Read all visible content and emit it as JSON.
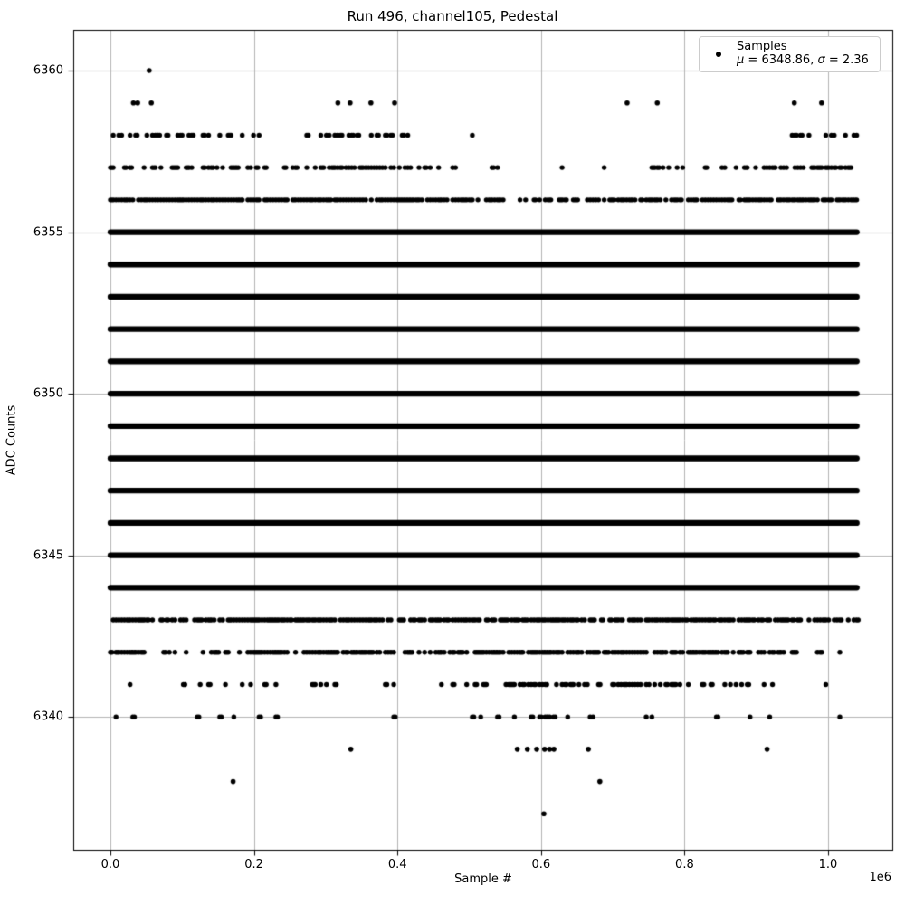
{
  "chart_data": {
    "type": "scatter",
    "title": "Run 496, channel105, Pedestal",
    "xlabel": "Sample #",
    "ylabel": "ADC Counts",
    "x_offset_label": "1e6",
    "marker_color": "#000000",
    "grid": true,
    "grid_color": "#b4b4b4",
    "spine_color": "#000000",
    "xlim": [
      -51700,
      1090800
    ],
    "ylim": [
      6335.86,
      6361.26
    ],
    "x_ticks": [
      0,
      200000,
      400000,
      600000,
      800000,
      1000000
    ],
    "x_tick_labels": [
      "0.0",
      "0.2",
      "0.4",
      "0.6",
      "0.8",
      "1.0"
    ],
    "y_ticks": [
      6340,
      6345,
      6350,
      6355,
      6360
    ],
    "y_tick_labels": [
      "6340",
      "6345",
      "6350",
      "6355",
      "6360"
    ],
    "x_data_range": [
      0,
      1040000
    ],
    "legend": {
      "label": "Samples",
      "mu_symbol": "μ",
      "mu_rest": " = 6348.86, ",
      "sigma_symbol": "σ",
      "sigma_rest": " = 2.36",
      "position": "upper right"
    },
    "stats": {
      "mean": 6348.86,
      "sigma": 2.36
    },
    "solid_bands": [
      6344,
      6345,
      6346,
      6347,
      6348,
      6349,
      6350,
      6351,
      6352,
      6353,
      6354,
      6355
    ],
    "density_bands": [
      {
        "adc": 6358,
        "bins": [
          0.45,
          0.35,
          0.25,
          0.25,
          0.2,
          0.3,
          0.5,
          0.3,
          0.3,
          0.12,
          0.12,
          0.0,
          0.0,
          0.0,
          0.0,
          0.1,
          0.0,
          0.0,
          0.05,
          0.55,
          0.6
        ]
      },
      {
        "adc": 6357,
        "bins": [
          0.55,
          0.5,
          0.6,
          0.5,
          0.4,
          0.5,
          0.7,
          0.8,
          0.5,
          0.35,
          0.3,
          0.03,
          0.06,
          0.12,
          0.15,
          0.3,
          0.2,
          0.5,
          0.5,
          0.6,
          0.6
        ]
      },
      {
        "adc": 6356,
        "bins": [
          0.93,
          0.9,
          0.85,
          0.88,
          0.92,
          0.95,
          0.92,
          0.9,
          0.85,
          0.88,
          0.8,
          0.45,
          0.55,
          0.6,
          0.8,
          0.9,
          0.88,
          0.85,
          0.9,
          0.92,
          0.9
        ]
      },
      {
        "adc": 6343,
        "bins": [
          0.9,
          0.5,
          0.9,
          0.9,
          0.88,
          0.85,
          0.9,
          0.88,
          0.6,
          0.78,
          0.85,
          0.88,
          0.86,
          0.82,
          0.86,
          0.88,
          0.86,
          0.88,
          0.86,
          0.45,
          0.85
        ]
      },
      {
        "adc": 6342,
        "bins": [
          0.88,
          0.4,
          0.25,
          0.4,
          0.85,
          0.8,
          0.8,
          0.75,
          0.35,
          0.5,
          0.75,
          0.85,
          0.85,
          0.8,
          0.85,
          0.8,
          0.82,
          0.8,
          0.7,
          0.35,
          0.3
        ]
      },
      {
        "adc": 6341,
        "bins": [
          0.15,
          0.1,
          0.15,
          0.2,
          0.15,
          0.12,
          0.1,
          0.1,
          0.12,
          0.15,
          0.3,
          0.55,
          0.6,
          0.55,
          0.5,
          0.4,
          0.35,
          0.3,
          0.25,
          0.1,
          0.08
        ]
      },
      {
        "adc": 6340,
        "bins": [
          0.05,
          0.06,
          0.08,
          0.07,
          0.04,
          0.04,
          0.08,
          0.06,
          0.07,
          0.04,
          0.06,
          0.3,
          0.5,
          0.35,
          0.1,
          0.1,
          0.14,
          0.1,
          0.04,
          0.02,
          0.05
        ]
      }
    ],
    "point_bands": [
      {
        "adc": 6360,
        "x": [
          54000
        ]
      },
      {
        "adc": 6359,
        "x": [
          32000,
          38000,
          57000,
          317000,
          334000,
          363000,
          396000,
          720000,
          762000,
          953000,
          991000
        ]
      },
      {
        "adc": 6339,
        "x": [
          335000,
          567000,
          581000,
          594000,
          605000,
          612000,
          618000,
          666000,
          915000
        ]
      },
      {
        "adc": 6338,
        "x": [
          171000,
          682000
        ]
      },
      {
        "adc": 6337,
        "x": [
          604000
        ]
      }
    ]
  }
}
